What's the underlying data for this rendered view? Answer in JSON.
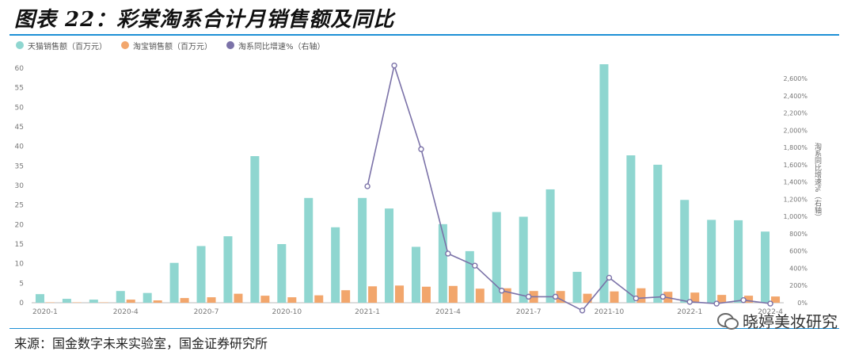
{
  "figure": {
    "title": "图表 22：彩棠淘系合计月销售额及同比",
    "source": "来源：国金数字未来实验室，国金证券研究所",
    "brand": "晓婷美妆研究"
  },
  "colors": {
    "tmall": "#8fd6d0",
    "taobao": "#f2a66c",
    "yoy": "#7b72a8",
    "accent": "#1e90d6"
  },
  "icons": {
    "brand_icon": "wechat-icon"
  },
  "chart_data": {
    "type": "bar",
    "x": [
      "2020-1",
      "2020-2",
      "2020-3",
      "2020-4",
      "2020-5",
      "2020-6",
      "2020-7",
      "2020-8",
      "2020-9",
      "2020-10",
      "2020-11",
      "2020-12",
      "2021-1",
      "2021-2",
      "2021-3",
      "2021-4",
      "2021-5",
      "2021-6",
      "2021-7",
      "2021-8",
      "2021-9",
      "2021-10",
      "2021-11",
      "2021-12",
      "2022-1",
      "2022-2",
      "2022-3",
      "2022-4"
    ],
    "x_tick_labels": [
      "2020-1",
      "2020-4",
      "2020-7",
      "2020-10",
      "2021-1",
      "2021-4",
      "2021-7",
      "2021-10",
      "2022-1",
      "2022-4"
    ],
    "series": [
      {
        "name": "天猫销售额（百万元）",
        "type": "bar",
        "axis": "left",
        "values": [
          2.2,
          1.0,
          0.8,
          3.0,
          2.5,
          10.2,
          14.5,
          17.0,
          37.5,
          15.0,
          26.8,
          19.3,
          26.8,
          24.1,
          14.3,
          20.1,
          13.2,
          23.2,
          22.0,
          29.0,
          7.9,
          61.0,
          37.7,
          35.3,
          26.3,
          21.2,
          21.1,
          18.2
        ]
      },
      {
        "name": "淘宝销售额（百万元）",
        "type": "bar",
        "axis": "left",
        "values": [
          0.1,
          0.1,
          0.1,
          0.8,
          0.6,
          1.2,
          1.4,
          2.3,
          1.8,
          1.4,
          1.9,
          3.2,
          4.2,
          4.4,
          4.1,
          4.3,
          3.6,
          3.7,
          3.0,
          3.0,
          2.3,
          2.9,
          3.7,
          2.8,
          2.6,
          2.0,
          1.8,
          1.6
        ]
      },
      {
        "name": "淘系同比增速%（右轴）",
        "type": "line",
        "axis": "right",
        "values": [
          null,
          null,
          null,
          null,
          null,
          null,
          null,
          null,
          null,
          null,
          null,
          null,
          1350,
          2750,
          1780,
          570,
          430,
          140,
          70,
          70,
          -90,
          290,
          50,
          70,
          10,
          -10,
          30,
          -10
        ]
      }
    ],
    "y_left": {
      "min": 0,
      "max": 60,
      "ticks": [
        0,
        5,
        10,
        15,
        20,
        25,
        30,
        35,
        40,
        45,
        50,
        55,
        60
      ]
    },
    "y_right": {
      "label": "淘系同比增速%（右轴）",
      "min": 0,
      "max": 2600,
      "ticks": [
        "0%",
        "200%",
        "400%",
        "600%",
        "800%",
        "1,000%",
        "1,200%",
        "1,400%",
        "1,600%",
        "1,800%",
        "2,000%",
        "2,200%",
        "2,400%",
        "2,600%"
      ]
    },
    "legend_position": "top-left",
    "grid": false
  }
}
